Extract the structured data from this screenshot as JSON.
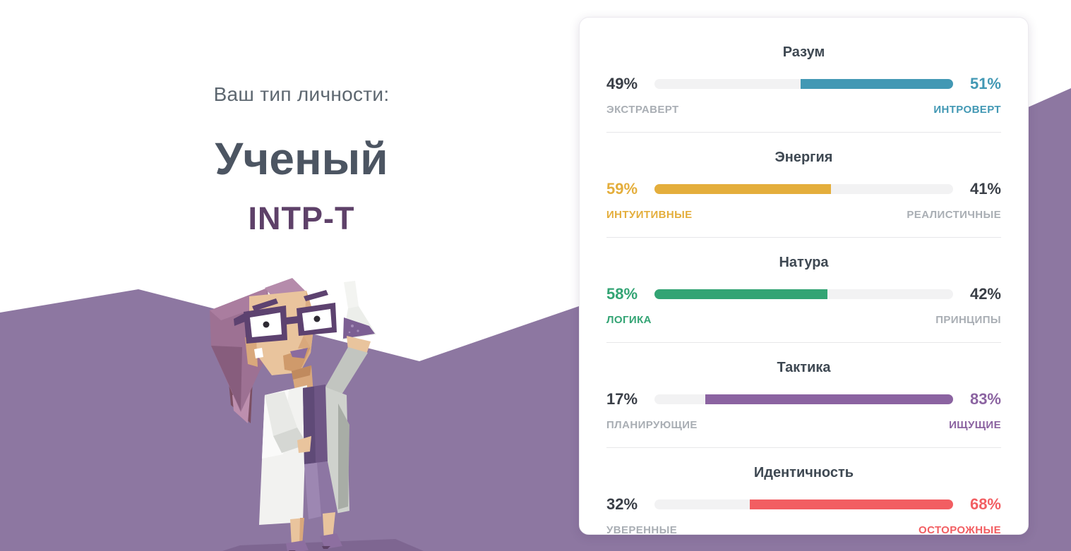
{
  "page": {
    "background_color": "#ffffff",
    "mountain_color": "#8d77a1",
    "mountain_shadow_color": "#7e6691"
  },
  "result": {
    "intro": "Ваш тип личности:",
    "type_name": "Ученый",
    "type_code": "INTP-T",
    "intro_color": "#5d6770",
    "type_name_color": "#4c5562",
    "type_code_color": "#5e4169"
  },
  "illustration": "scientist-with-flask",
  "card": {
    "title_color": "#3e4852",
    "neutral_pct_color": "#3a3f47",
    "muted_label_color": "#a9aeb4",
    "track_color": "#f2f2f3",
    "traits": [
      {
        "title": "Разум",
        "left_pct": "49%",
        "left_label": "ЭКСТРАВЕРТ",
        "right_pct": "51%",
        "right_label": "ИНТРОВЕРТ",
        "fill_pct": 51,
        "fill_side": "right",
        "color": "#4298b4"
      },
      {
        "title": "Энергия",
        "left_pct": "59%",
        "left_label": "ИНТУИТИВНЫЕ",
        "right_pct": "41%",
        "right_label": "РЕАЛИСТИЧНЫЕ",
        "fill_pct": 59,
        "fill_side": "left",
        "color": "#e4ae3c"
      },
      {
        "title": "Натура",
        "left_pct": "58%",
        "left_label": "ЛОГИКА",
        "right_pct": "42%",
        "right_label": "ПРИНЦИПЫ",
        "fill_pct": 58,
        "fill_side": "left",
        "color": "#33a474"
      },
      {
        "title": "Тактика",
        "left_pct": "17%",
        "left_label": "ПЛАНИРУЮЩИЕ",
        "right_pct": "83%",
        "right_label": "ИЩУЩИЕ",
        "fill_pct": 83,
        "fill_side": "right",
        "color": "#8b63a1"
      },
      {
        "title": "Идентичность",
        "left_pct": "32%",
        "left_label": "УВЕРЕННЫЕ",
        "right_pct": "68%",
        "right_label": "ОСТОРОЖНЫЕ",
        "fill_pct": 68,
        "fill_side": "right",
        "color": "#f25e62"
      }
    ]
  }
}
